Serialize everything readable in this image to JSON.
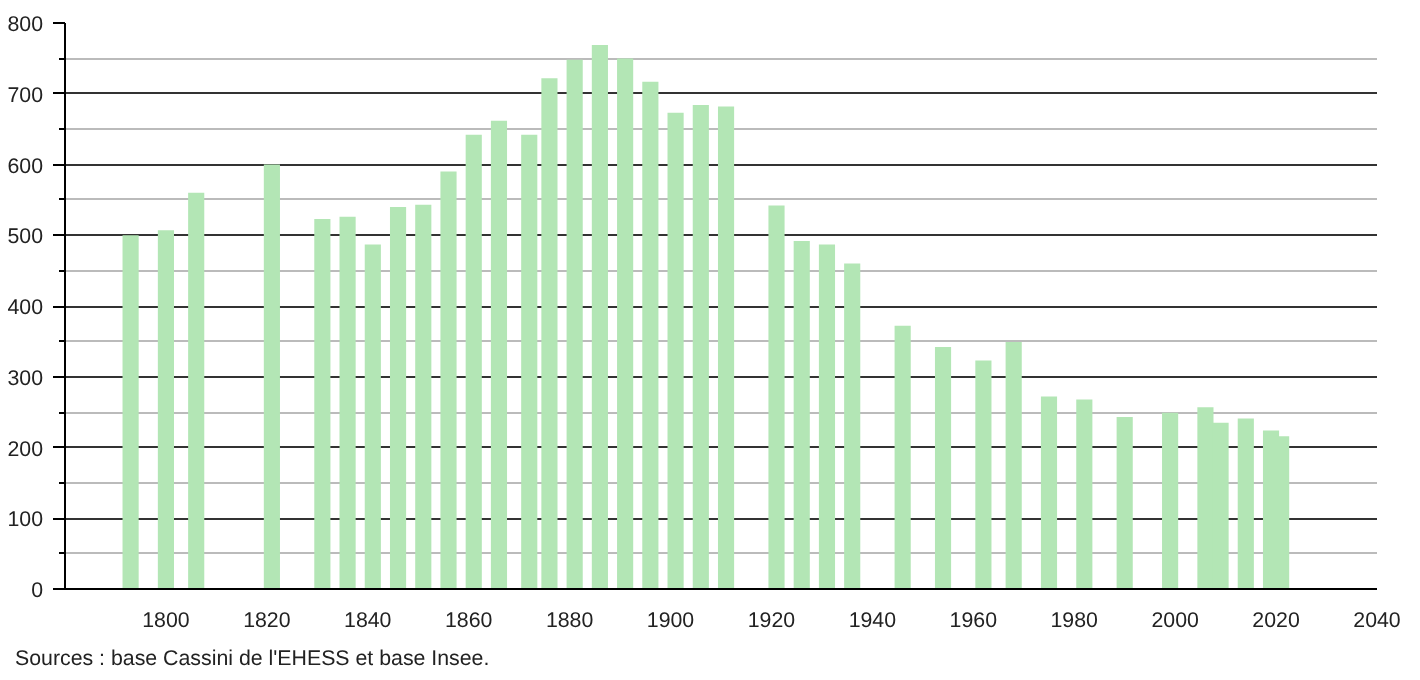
{
  "chart_data": {
    "type": "bar",
    "color": "#b3e6b5",
    "x": [
      1793,
      1800,
      1806,
      1821,
      1831,
      1836,
      1841,
      1846,
      1851,
      1856,
      1861,
      1866,
      1872,
      1876,
      1881,
      1886,
      1891,
      1896,
      1901,
      1906,
      1911,
      1921,
      1926,
      1931,
      1936,
      1946,
      1954,
      1962,
      1968,
      1975,
      1982,
      1990,
      1999,
      2006,
      2009,
      2014,
      2019,
      2021
    ],
    "values": [
      500,
      507,
      560,
      600,
      523,
      526,
      487,
      540,
      543,
      590,
      642,
      662,
      642,
      722,
      748,
      769,
      750,
      717,
      673,
      684,
      682,
      542,
      492,
      487,
      460,
      372,
      342,
      323,
      349,
      272,
      268,
      243,
      249,
      257,
      235,
      241,
      224,
      216
    ],
    "xlim": [
      1780,
      2040
    ],
    "xticks": [
      1800,
      1820,
      1840,
      1860,
      1880,
      1900,
      1920,
      1940,
      1960,
      1980,
      2000,
      2020,
      2040
    ],
    "ylim": [
      0,
      800
    ],
    "yticks": [
      0,
      100,
      200,
      300,
      400,
      500,
      600,
      700,
      800
    ],
    "grid": "y",
    "annotations": [
      "Sources : base Cassini de l'EHESS et base Insee."
    ]
  }
}
